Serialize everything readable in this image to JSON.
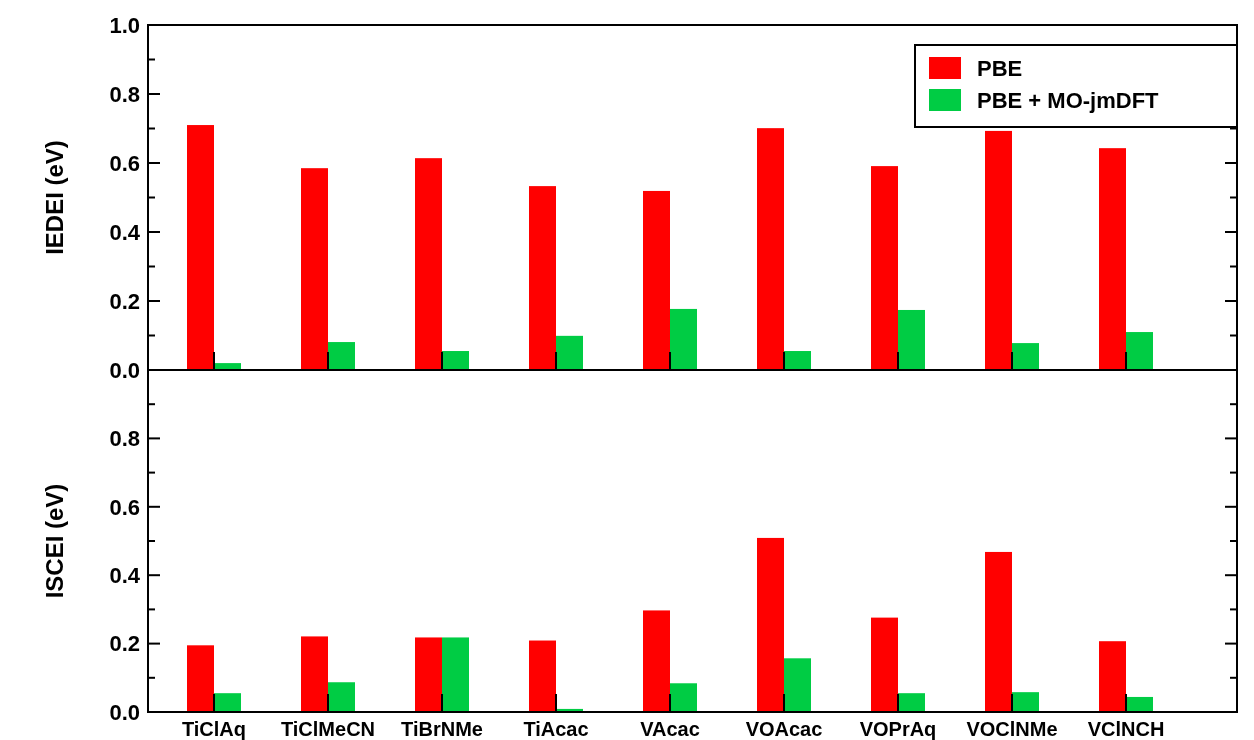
{
  "chart_data": [
    {
      "type": "bar",
      "ylabel": "IEDEI (eV)",
      "categories": [
        null,
        null,
        null,
        null,
        null,
        null,
        null,
        null,
        null
      ],
      "series": [
        {
          "name": "PBE",
          "color": "#ff0000",
          "values": [
            0.71,
            0.585,
            0.614,
            0.533,
            0.519,
            0.701,
            0.591,
            0.693,
            0.643
          ]
        },
        {
          "name": "PBE + MO-jmDFT",
          "color": "#00cc44",
          "values": [
            0.02,
            0.081,
            0.055,
            0.099,
            0.177,
            0.055,
            0.174,
            0.078,
            0.11
          ]
        }
      ],
      "ylim": [
        0,
        1
      ],
      "yticks": [
        {
          "value": 0,
          "label": "0.0"
        },
        {
          "value": 0.1,
          "label": null
        },
        {
          "value": 0.2,
          "label": "0.2"
        },
        {
          "value": 0.3,
          "label": null
        },
        {
          "value": 0.4,
          "label": "0.4"
        },
        {
          "value": 0.5,
          "label": null
        },
        {
          "value": 0.6,
          "label": "0.6"
        },
        {
          "value": 0.7,
          "label": null
        },
        {
          "value": 0.8,
          "label": "0.8"
        },
        {
          "value": 0.9,
          "label": null
        },
        {
          "value": 1,
          "label": "1.0"
        }
      ],
      "tick_labels": "y",
      "legend": "top right"
    },
    {
      "type": "bar",
      "ylabel": "ISCEI (eV)",
      "categories": [
        "TiClAq",
        "TiClMeCN",
        "TiBrNMe",
        "TiAcac",
        "VAcac",
        "VOAcac",
        "VOPrAq",
        "VOClNMe",
        "VClNCH"
      ],
      "series": [
        {
          "color": "#ff0000",
          "values": [
            0.195,
            0.221,
            0.218,
            0.209,
            0.297,
            0.509,
            0.276,
            0.468,
            0.207
          ]
        },
        {
          "color": "#00cc44",
          "values": [
            0.055,
            0.087,
            0.218,
            0.009,
            0.084,
            0.157,
            0.055,
            0.058,
            0.044
          ]
        }
      ],
      "ylim": [
        0,
        1
      ],
      "yticks": [
        {
          "value": 0,
          "label": "0.0"
        },
        {
          "value": 0.1,
          "label": null
        },
        {
          "value": 0.2,
          "label": "0.2"
        },
        {
          "value": 0.3,
          "label": null
        },
        {
          "value": 0.4,
          "label": "0.4"
        },
        {
          "value": 0.5,
          "label": null
        },
        {
          "value": 0.6,
          "label": "0.6"
        },
        {
          "value": 0.7,
          "label": null
        },
        {
          "value": 0.8,
          "label": "0.8"
        },
        {
          "value": 0.9,
          "label": null
        }
      ],
      "legend": false
    }
  ]
}
